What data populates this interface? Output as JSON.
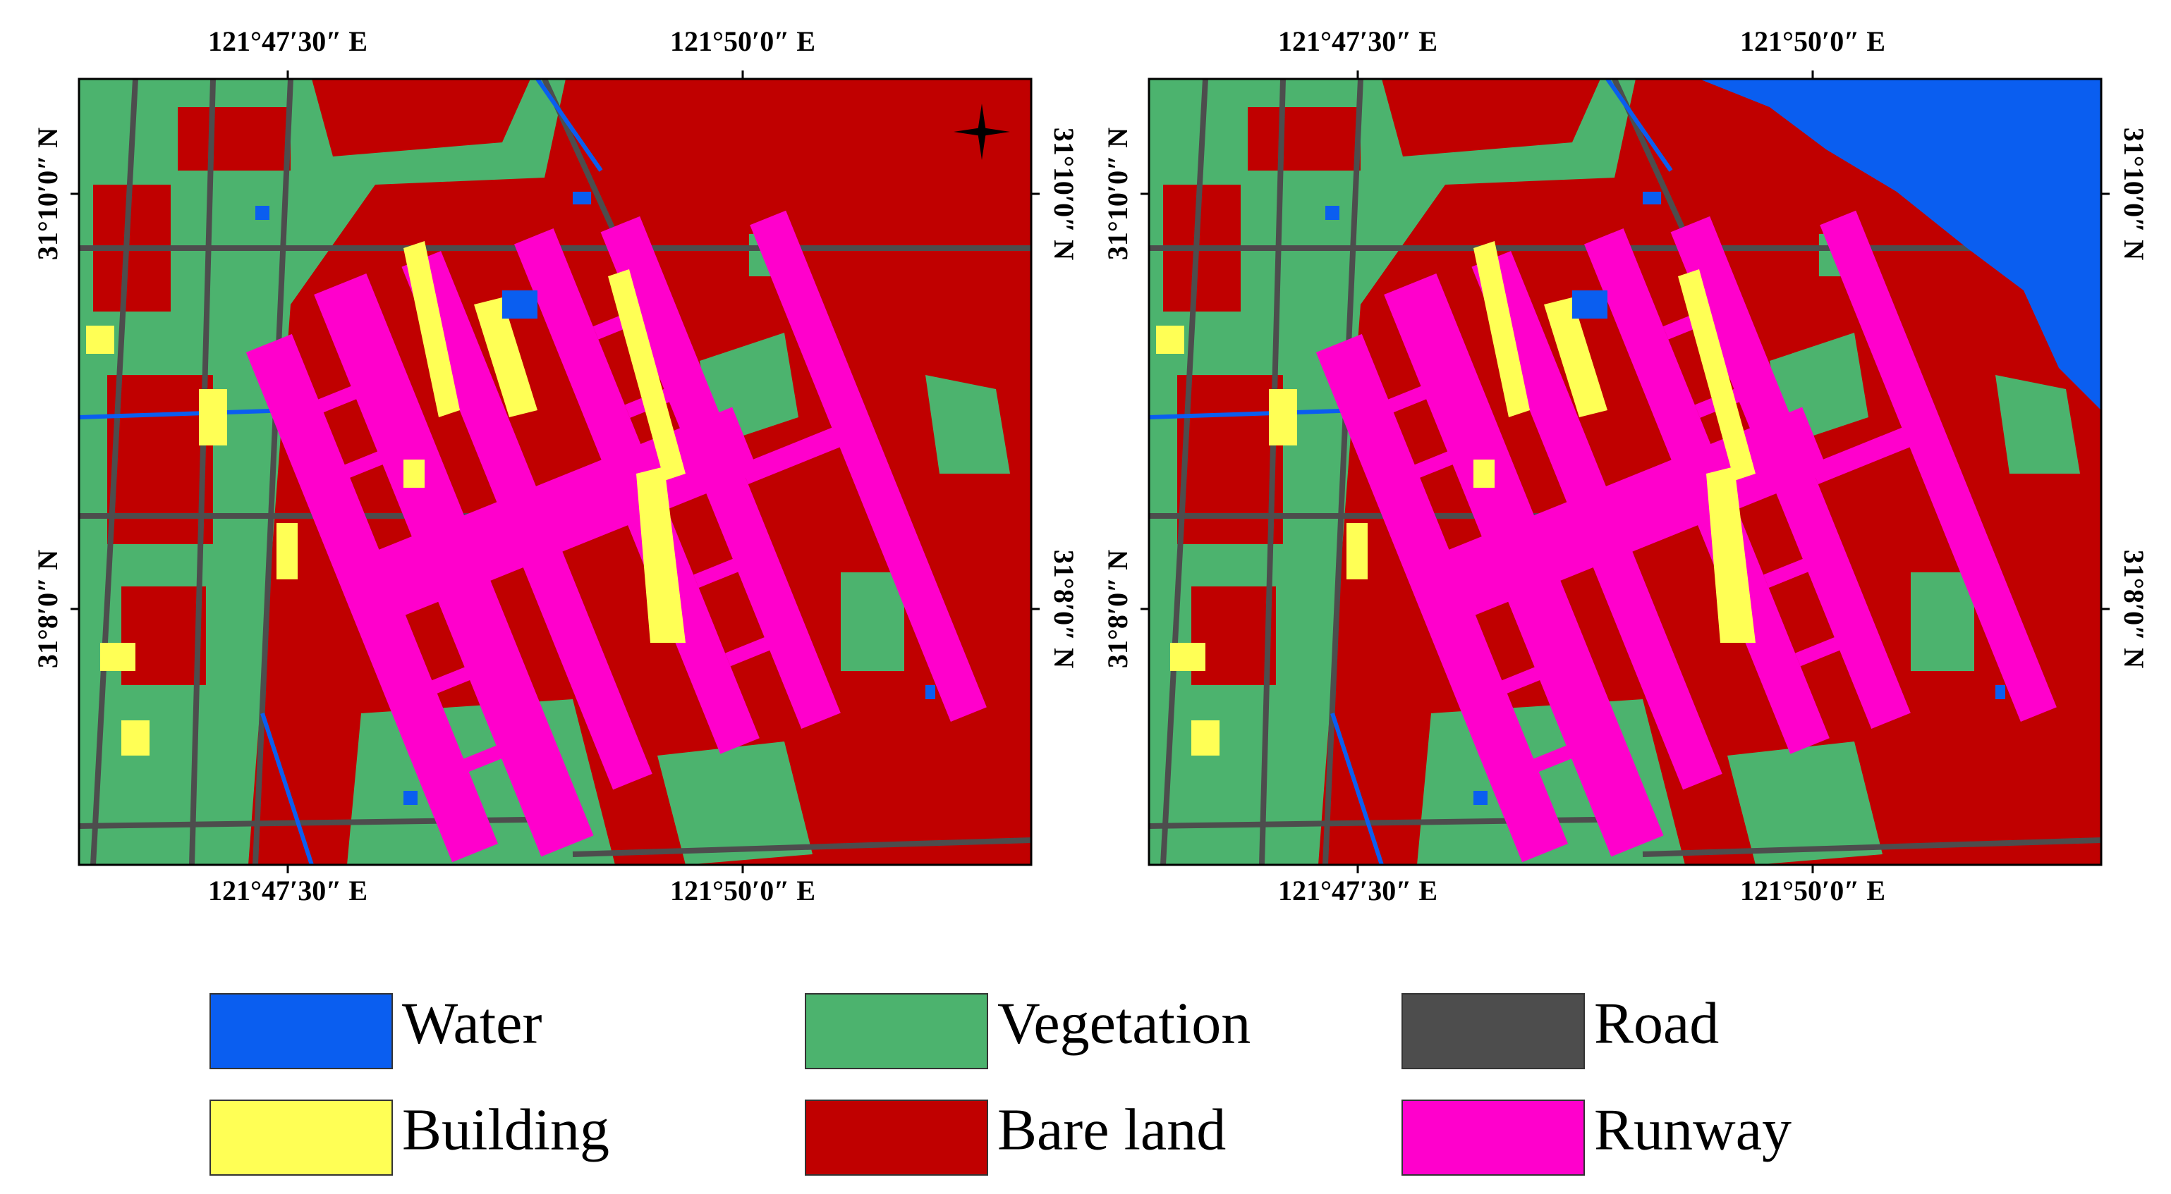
{
  "panels": [
    {
      "lon_top": [
        "121°47′30″ E",
        "121°50′0″ E"
      ],
      "lon_bottom": [
        "121°47′30″ E",
        "121°50′0″ E"
      ],
      "lat_left": [
        "31°10′0″ N",
        "31°8′0″ N"
      ],
      "lat_right": [
        "31°10′0″ N",
        "31°8′0″ N"
      ],
      "water_body": false
    },
    {
      "lon_top": [
        "121°47′30″ E",
        "121°50′0″ E"
      ],
      "lon_bottom": [
        "121°47′30″ E",
        "121°50′0″ E"
      ],
      "lat_left": [
        "31°10′0″ N",
        "31°8′0″ N"
      ],
      "lat_right": [
        "31°10′0″ N",
        "31°8′0″ N"
      ],
      "water_body": true
    }
  ],
  "legend": [
    {
      "label": "Water",
      "color": "#0a5ef0"
    },
    {
      "label": "Vegetation",
      "color": "#4cb36e"
    },
    {
      "label": "Road",
      "color": "#4d4d4d"
    },
    {
      "label": "Building",
      "color": "#ffff55"
    },
    {
      "label": "Bare land",
      "color": "#c00000"
    },
    {
      "label": "Runway",
      "color": "#ff00cc"
    }
  ]
}
